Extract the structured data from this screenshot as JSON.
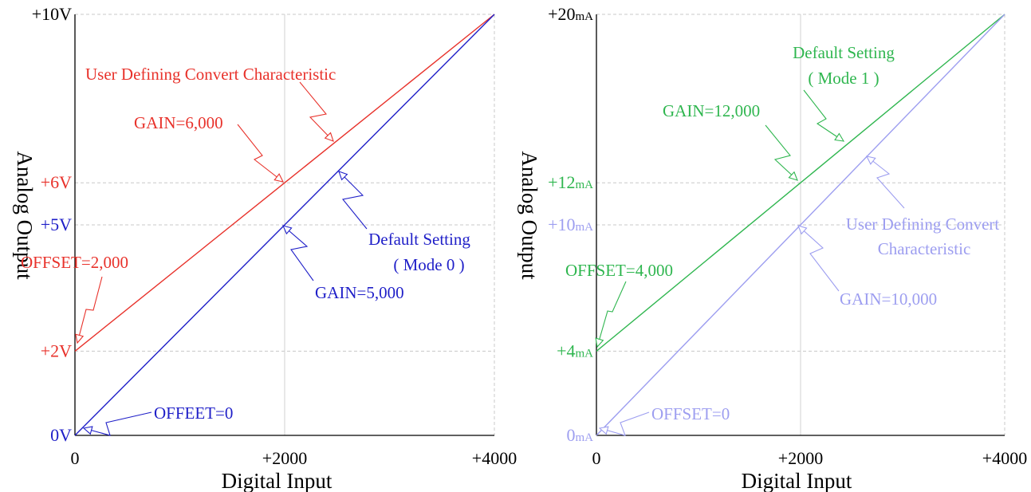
{
  "chart_data": [
    {
      "type": "line",
      "xlabel": "Digital Input",
      "ylabel": "Analog Output",
      "xlim": [
        0,
        4000
      ],
      "ylim": [
        0,
        10
      ],
      "grid": true,
      "x_ticks": [
        {
          "v": 0,
          "label": "0"
        },
        {
          "v": 2000,
          "label": "+2000"
        },
        {
          "v": 4000,
          "label": "+4000"
        }
      ],
      "y_ticks": [
        {
          "v": 10,
          "label": "+10V",
          "color": "#000000"
        },
        {
          "v": 6,
          "label": "+6V",
          "color": "#e8322b"
        },
        {
          "v": 5,
          "label": "+5V",
          "color": "#1f1fc8"
        },
        {
          "v": 2,
          "label": "+2V",
          "color": "#e8322b"
        },
        {
          "v": 0,
          "label": "0V",
          "color": "#1f1fc8"
        }
      ],
      "series": [
        {
          "color": "#e8322b",
          "x": [
            0,
            2000,
            4000
          ],
          "y": [
            2,
            6,
            10
          ]
        },
        {
          "color": "#1f1fc8",
          "x": [
            0,
            2000,
            4000
          ],
          "y": [
            0,
            5,
            10
          ]
        }
      ],
      "annotations": [
        {
          "text": "User Defining Convert Characteristic",
          "color": "#e8322b"
        },
        {
          "text": "GAIN=6,000",
          "color": "#e8322b"
        },
        {
          "text": "OFFSET=2,000",
          "color": "#e8322b"
        },
        {
          "text": "Default Setting",
          "color": "#1f1fc8"
        },
        {
          "text": "( Mode 0 )",
          "color": "#1f1fc8"
        },
        {
          "text": "GAIN=5,000",
          "color": "#1f1fc8"
        },
        {
          "text": "OFFEET=0",
          "color": "#1f1fc8"
        }
      ]
    },
    {
      "type": "line",
      "xlabel": "Digital Input",
      "ylabel": "Analog Output",
      "xlim": [
        0,
        4000
      ],
      "ylim": [
        0,
        20
      ],
      "grid": true,
      "x_ticks": [
        {
          "v": 0,
          "label": "0"
        },
        {
          "v": 2000,
          "label": "+2000"
        },
        {
          "v": 4000,
          "label": "+4000"
        }
      ],
      "y_ticks": [
        {
          "v": 20,
          "label": "+20",
          "unit": "mA",
          "color": "#000000"
        },
        {
          "v": 12,
          "label": "+12",
          "unit": "mA",
          "color": "#2fb64f"
        },
        {
          "v": 10,
          "label": "+10",
          "unit": "mA",
          "color": "#9d9ef0"
        },
        {
          "v": 4,
          "label": "+4",
          "unit": "mA",
          "color": "#2fb64f"
        },
        {
          "v": 0,
          "label": "0",
          "unit": "mA",
          "color": "#9d9ef0"
        }
      ],
      "series": [
        {
          "color": "#2fb64f",
          "x": [
            0,
            2000,
            4000
          ],
          "y": [
            4,
            12,
            20
          ]
        },
        {
          "color": "#9d9ef0",
          "x": [
            0,
            2000,
            4000
          ],
          "y": [
            0,
            10,
            20
          ]
        }
      ],
      "annotations": [
        {
          "text": "Default Setting",
          "color": "#2fb64f"
        },
        {
          "text": "( Mode 1 )",
          "color": "#2fb64f"
        },
        {
          "text": "GAIN=12,000",
          "color": "#2fb64f"
        },
        {
          "text": "OFFSET=4,000",
          "color": "#2fb64f"
        },
        {
          "text": "User Defining Convert",
          "color": "#9d9ef0"
        },
        {
          "text": "Characteristic",
          "color": "#9d9ef0"
        },
        {
          "text": "GAIN=10,000",
          "color": "#9d9ef0"
        },
        {
          "text": "OFFSET=0",
          "color": "#9d9ef0"
        }
      ]
    }
  ]
}
